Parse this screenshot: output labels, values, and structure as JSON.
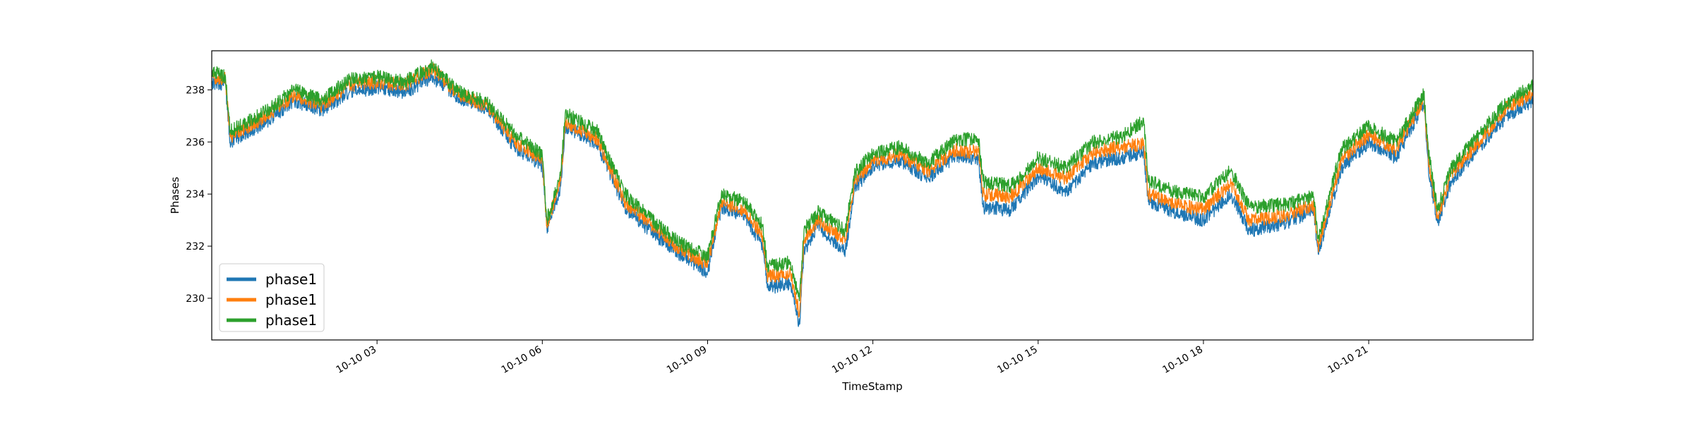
{
  "chart_data": {
    "type": "line",
    "title": "",
    "xlabel": "TimeStamp",
    "ylabel": "Phases",
    "xlim": [
      "10-10 00:00",
      "10-10 23:59"
    ],
    "ylim": [
      228.4,
      239.5
    ],
    "x_ticks": [
      "10-10 03",
      "10-10 06",
      "10-10 09",
      "10-10 12",
      "10-10 15",
      "10-10 18",
      "10-10 21"
    ],
    "x_tick_hours": [
      3,
      6,
      9,
      12,
      15,
      18,
      21
    ],
    "y_ticks": [
      230,
      232,
      234,
      236,
      238
    ],
    "y_tick_labels": [
      "230",
      "232",
      "234",
      "236",
      "238"
    ],
    "grid": false,
    "legend_position": "lower-left",
    "x": [
      "10-10 00:00",
      "10-10 00:15",
      "10-10 00:20",
      "10-10 01:00",
      "10-10 01:30",
      "10-10 02:00",
      "10-10 02:30",
      "10-10 03:00",
      "10-10 03:30",
      "10-10 04:00",
      "10-10 04:30",
      "10-10 05:00",
      "10-10 05:30",
      "10-10 06:00",
      "10-10 06:05",
      "10-10 06:20",
      "10-10 06:25",
      "10-10 07:00",
      "10-10 07:30",
      "10-10 08:00",
      "10-10 08:30",
      "10-10 09:00",
      "10-10 09:15",
      "10-10 09:40",
      "10-10 10:00",
      "10-10 10:05",
      "10-10 10:30",
      "10-10 10:40",
      "10-10 10:45",
      "10-10 11:00",
      "10-10 11:30",
      "10-10 11:40",
      "10-10 12:00",
      "10-10 12:30",
      "10-10 13:00",
      "10-10 13:30",
      "10-10 13:55",
      "10-10 14:00",
      "10-10 14:30",
      "10-10 15:00",
      "10-10 15:30",
      "10-10 16:00",
      "10-10 16:30",
      "10-10 16:55",
      "10-10 17:00",
      "10-10 17:30",
      "10-10 18:00",
      "10-10 18:30",
      "10-10 18:50",
      "10-10 19:30",
      "10-10 20:00",
      "10-10 20:05",
      "10-10 20:30",
      "10-10 21:00",
      "10-10 21:30",
      "10-10 22:00",
      "10-10 22:05",
      "10-10 22:15",
      "10-10 22:30",
      "10-10 23:00",
      "10-10 23:30",
      "10-10 23:59"
    ],
    "series": [
      {
        "name": "phase1",
        "color": "#1f77b4",
        "values": [
          238.3,
          238.2,
          236.0,
          236.8,
          237.6,
          237.2,
          237.9,
          238.1,
          237.9,
          238.5,
          237.7,
          237.3,
          235.8,
          235.1,
          232.7,
          234.3,
          236.6,
          235.9,
          233.5,
          232.5,
          231.7,
          231.0,
          233.5,
          233.2,
          232.0,
          230.4,
          230.6,
          229.0,
          231.8,
          232.8,
          231.8,
          234.2,
          235.1,
          235.3,
          234.6,
          235.5,
          235.3,
          233.5,
          233.4,
          234.7,
          234.1,
          235.2,
          235.4,
          235.6,
          233.7,
          233.3,
          233.0,
          234.0,
          232.6,
          232.9,
          233.4,
          231.7,
          235.0,
          236.0,
          235.4,
          237.5,
          235.0,
          232.9,
          234.5,
          235.8,
          237.0,
          237.6
        ]
      },
      {
        "name": "phase1",
        "color": "#ff7f0e",
        "values": [
          238.5,
          238.4,
          236.2,
          237.0,
          237.8,
          237.4,
          238.2,
          238.3,
          238.2,
          238.8,
          237.8,
          237.4,
          236.0,
          235.3,
          232.8,
          234.5,
          236.8,
          236.1,
          233.7,
          232.8,
          231.9,
          231.3,
          233.7,
          233.4,
          232.4,
          230.8,
          231.0,
          229.4,
          232.2,
          233.0,
          232.2,
          234.5,
          235.3,
          235.5,
          234.9,
          235.7,
          235.6,
          234.0,
          233.9,
          235.0,
          234.6,
          235.6,
          235.8,
          235.9,
          234.0,
          233.6,
          233.4,
          234.4,
          233.0,
          233.2,
          233.6,
          232.0,
          235.3,
          236.3,
          235.7,
          237.7,
          235.3,
          233.1,
          234.8,
          236.0,
          237.3,
          237.9
        ]
      },
      {
        "name": "phase1",
        "color": "#2ca02c",
        "values": [
          238.7,
          238.5,
          236.4,
          237.2,
          238.0,
          237.6,
          238.4,
          238.5,
          238.3,
          238.9,
          237.9,
          237.5,
          236.3,
          235.5,
          233.0,
          234.7,
          237.1,
          236.4,
          234.0,
          233.0,
          232.1,
          231.6,
          234.0,
          233.7,
          232.8,
          231.2,
          231.4,
          229.9,
          232.6,
          233.3,
          232.6,
          234.8,
          235.6,
          235.8,
          235.2,
          236.1,
          236.1,
          234.5,
          234.3,
          235.4,
          235.0,
          236.0,
          236.2,
          236.8,
          234.5,
          234.1,
          233.9,
          234.9,
          233.5,
          233.6,
          233.9,
          232.3,
          235.7,
          236.6,
          236.0,
          237.9,
          235.6,
          233.4,
          235.0,
          236.3,
          237.5,
          238.2
        ]
      }
    ]
  }
}
